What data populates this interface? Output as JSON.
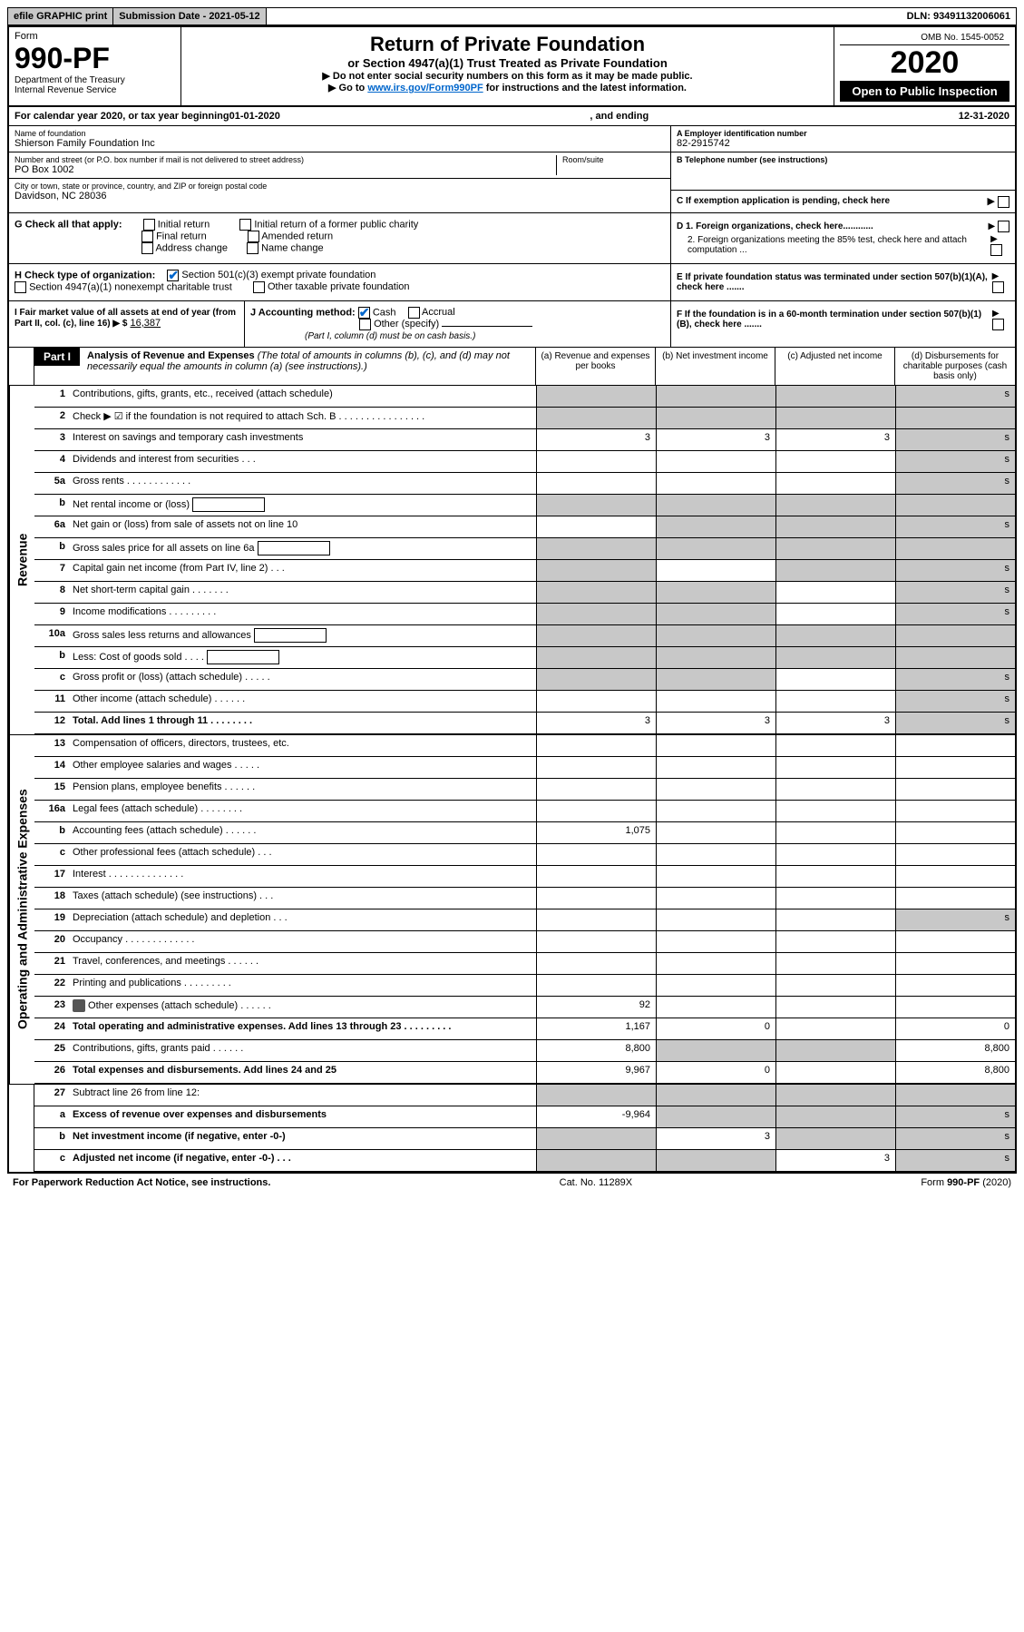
{
  "topbar": {
    "efile_label": "efile GRAPHIC print",
    "submission_label": "Submission Date - 2021-05-12",
    "dln_label": "DLN: 93491132006061"
  },
  "header": {
    "form_word": "Form",
    "form_number": "990-PF",
    "dept": "Department of the Treasury",
    "irs": "Internal Revenue Service",
    "title": "Return of Private Foundation",
    "subtitle": "or Section 4947(a)(1) Trust Treated as Private Foundation",
    "note1": "▶ Do not enter social security numbers on this form as it may be made public.",
    "note2_pre": "▶ Go to ",
    "note2_link": "www.irs.gov/Form990PF",
    "note2_post": " for instructions and the latest information.",
    "omb": "OMB No. 1545-0052",
    "year": "2020",
    "openpub": "Open to Public Inspection"
  },
  "cal": {
    "text_pre": "For calendar year 2020, or tax year beginning ",
    "begin": "01-01-2020",
    "mid": ", and ending ",
    "end": "12-31-2020"
  },
  "entity": {
    "name_label": "Name of foundation",
    "name": "Shierson Family Foundation Inc",
    "addr_label": "Number and street (or P.O. box number if mail is not delivered to street address)",
    "addr": "PO Box 1002",
    "room_label": "Room/suite",
    "city_label": "City or town, state or province, country, and ZIP or foreign postal code",
    "city": "Davidson, NC  28036",
    "ein_label": "A Employer identification number",
    "ein": "82-2915742",
    "tel_label": "B Telephone number (see instructions)",
    "c_label": "C If exemption application is pending, check here"
  },
  "g": {
    "label": "G Check all that apply:",
    "opts": [
      "Initial return",
      "Final return",
      "Address change",
      "Initial return of a former public charity",
      "Amended return",
      "Name change"
    ]
  },
  "h": {
    "label": "H Check type of organization:",
    "opt1": "Section 501(c)(3) exempt private foundation",
    "opt2": "Section 4947(a)(1) nonexempt charitable trust",
    "opt3": "Other taxable private foundation"
  },
  "i": {
    "label": "I Fair market value of all assets at end of year (from Part II, col. (c), line 16) ▶ $",
    "value": "16,387"
  },
  "j": {
    "label": "J Accounting method:",
    "cash": "Cash",
    "accrual": "Accrual",
    "other": "Other (specify)",
    "note": "(Part I, column (d) must be on cash basis.)"
  },
  "d": {
    "d1": "D 1. Foreign organizations, check here............",
    "d2": "2. Foreign organizations meeting the 85% test, check here and attach computation ...",
    "e": "E  If private foundation status was terminated under section 507(b)(1)(A), check here .......",
    "f": "F  If the foundation is in a 60-month termination under section 507(b)(1)(B), check here ......."
  },
  "part1": {
    "tab": "Part I",
    "title": "Analysis of Revenue and Expenses",
    "note": " (The total of amounts in columns (b), (c), and (d) may not necessarily equal the amounts in column (a) (see instructions).)",
    "cols": {
      "a": "(a) Revenue and expenses per books",
      "b": "(b) Net investment income",
      "c": "(c) Adjusted net income",
      "d": "(d) Disbursements for charitable purposes (cash basis only)"
    }
  },
  "sections": {
    "revenue": "Revenue",
    "expenses": "Operating and Administrative Expenses"
  },
  "rows": [
    {
      "n": "1",
      "d": "Contributions, gifts, grants, etc., received (attach schedule)",
      "a": "",
      "b": "",
      "c": "",
      "da": "s",
      "db": "s",
      "dc": "s",
      "dd": "s"
    },
    {
      "n": "2",
      "d": "Check ▶ ☑ if the foundation is not required to attach Sch. B   .  .  .  .  .  .  .  .  .  .  .  .  .  .  .  .",
      "a": "",
      "shade_all": true
    },
    {
      "n": "3",
      "d": "Interest on savings and temporary cash investments",
      "a": "3",
      "b": "3",
      "c": "3",
      "dd": "s"
    },
    {
      "n": "4",
      "d": "Dividends and interest from securities   .  .  .",
      "a": "",
      "b": "",
      "c": "",
      "dd": "s"
    },
    {
      "n": "5a",
      "d": "Gross rents   .  .  .  .  .  .  .  .  .  .  .  .",
      "a": "",
      "b": "",
      "c": "",
      "dd": "s"
    },
    {
      "n": "b",
      "d": "Net rental income or (loss)",
      "inline": true,
      "shade_all": true
    },
    {
      "n": "6a",
      "d": "Net gain or (loss) from sale of assets not on line 10",
      "a": "",
      "db": "s",
      "dc": "s",
      "dd": "s"
    },
    {
      "n": "b",
      "d": "Gross sales price for all assets on line 6a",
      "inline": true,
      "shade_all": true
    },
    {
      "n": "7",
      "d": "Capital gain net income (from Part IV, line 2)   .  .  .",
      "da": "s",
      "b": "",
      "dc": "s",
      "dd": "s"
    },
    {
      "n": "8",
      "d": "Net short-term capital gain   .  .  .  .  .  .  .",
      "da": "s",
      "db": "s",
      "c": "",
      "dd": "s"
    },
    {
      "n": "9",
      "d": "Income modifications   .  .  .  .  .  .  .  .  .",
      "da": "s",
      "db": "s",
      "c": "",
      "dd": "s"
    },
    {
      "n": "10a",
      "d": "Gross sales less returns and allowances",
      "inline": true,
      "shade_all": true
    },
    {
      "n": "b",
      "d": "Less: Cost of goods sold   .  .  .  .",
      "inline": true,
      "shade_all": true
    },
    {
      "n": "c",
      "d": "Gross profit or (loss) (attach schedule)   .  .  .  .  .",
      "da": "s",
      "db": "s",
      "c": "",
      "dd": "s"
    },
    {
      "n": "11",
      "d": "Other income (attach schedule)   .  .  .  .  .  .",
      "a": "",
      "b": "",
      "c": "",
      "dd": "s"
    },
    {
      "n": "12",
      "d": "Total. Add lines 1 through 11   .  .  .  .  .  .  .  .",
      "bold": true,
      "a": "3",
      "b": "3",
      "c": "3",
      "dd": "s"
    }
  ],
  "exp_rows": [
    {
      "n": "13",
      "d": "Compensation of officers, directors, trustees, etc.",
      "a": "",
      "b": "",
      "c": "",
      "dd": ""
    },
    {
      "n": "14",
      "d": "Other employee salaries and wages   .  .  .  .  .",
      "a": "",
      "b": "",
      "c": "",
      "dd": ""
    },
    {
      "n": "15",
      "d": "Pension plans, employee benefits   .  .  .  .  .  .",
      "a": "",
      "b": "",
      "c": "",
      "dd": ""
    },
    {
      "n": "16a",
      "d": "Legal fees (attach schedule)  .  .  .  .  .  .  .  .",
      "a": "",
      "b": "",
      "c": "",
      "dd": ""
    },
    {
      "n": "b",
      "d": "Accounting fees (attach schedule)  .  .  .  .  .  .",
      "a": "1,075",
      "b": "",
      "c": "",
      "dd": ""
    },
    {
      "n": "c",
      "d": "Other professional fees (attach schedule)   .  .  .",
      "a": "",
      "b": "",
      "c": "",
      "dd": ""
    },
    {
      "n": "17",
      "d": "Interest  .  .  .  .  .  .  .  .  .  .  .  .  .  .",
      "a": "",
      "b": "",
      "c": "",
      "dd": ""
    },
    {
      "n": "18",
      "d": "Taxes (attach schedule) (see instructions)   .  .  .",
      "a": "",
      "b": "",
      "c": "",
      "dd": ""
    },
    {
      "n": "19",
      "d": "Depreciation (attach schedule) and depletion   .  .  .",
      "a": "",
      "b": "",
      "c": "",
      "dd": "s"
    },
    {
      "n": "20",
      "d": "Occupancy  .  .  .  .  .  .  .  .  .  .  .  .  .",
      "a": "",
      "b": "",
      "c": "",
      "dd": ""
    },
    {
      "n": "21",
      "d": "Travel, conferences, and meetings  .  .  .  .  .  .",
      "a": "",
      "b": "",
      "c": "",
      "dd": ""
    },
    {
      "n": "22",
      "d": "Printing and publications  .  .  .  .  .  .  .  .  .",
      "a": "",
      "b": "",
      "c": "",
      "dd": ""
    },
    {
      "n": "23",
      "d": "Other expenses (attach schedule)  .  .  .  .  .  .",
      "icon": true,
      "a": "92",
      "b": "",
      "c": "",
      "dd": ""
    },
    {
      "n": "24",
      "d": "Total operating and administrative expenses. Add lines 13 through 23   .  .  .  .  .  .  .  .  .",
      "bold": true,
      "a": "1,167",
      "b": "0",
      "c": "",
      "dd": "0"
    },
    {
      "n": "25",
      "d": "Contributions, gifts, grants paid   .  .  .  .  .  .",
      "a": "8,800",
      "db": "s",
      "dc": "s",
      "dd": "8,800"
    },
    {
      "n": "26",
      "d": "Total expenses and disbursements. Add lines 24 and 25",
      "bold": true,
      "a": "9,967",
      "b": "0",
      "c": "",
      "dd": "8,800"
    }
  ],
  "net_rows": [
    {
      "n": "27",
      "d": "Subtract line 26 from line 12:",
      "shade_all": true
    },
    {
      "n": "a",
      "d": "Excess of revenue over expenses and disbursements",
      "bold": true,
      "a": "-9,964",
      "db": "s",
      "dc": "s",
      "dd": "s"
    },
    {
      "n": "b",
      "d": "Net investment income (if negative, enter -0-)",
      "bold": true,
      "da": "s",
      "b": "3",
      "dc": "s",
      "dd": "s"
    },
    {
      "n": "c",
      "d": "Adjusted net income (if negative, enter -0-)   .  .  .",
      "bold": true,
      "da": "s",
      "db": "s",
      "c": "3",
      "dd": "s"
    }
  ],
  "footer": {
    "left": "For Paperwork Reduction Act Notice, see instructions.",
    "mid": "Cat. No. 11289X",
    "right": "Form 990-PF (2020)"
  }
}
